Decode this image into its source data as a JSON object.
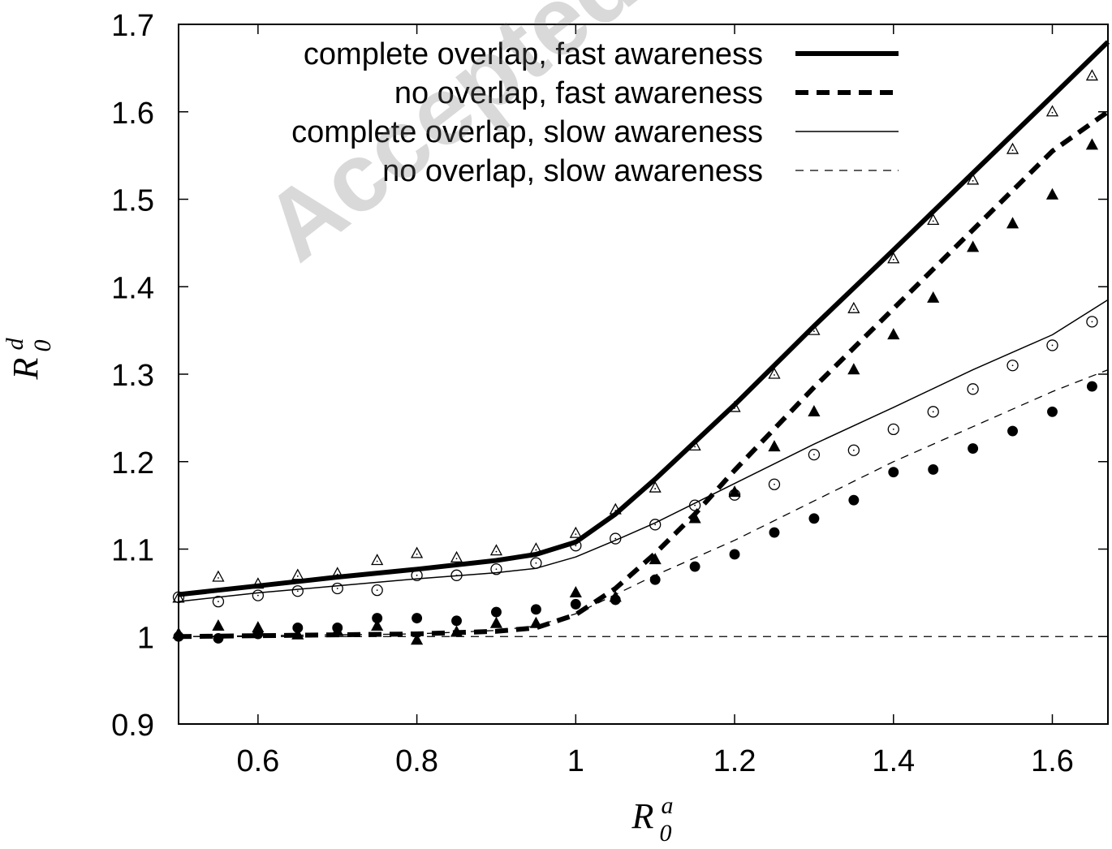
{
  "watermark": "Accepted man",
  "chart_data": {
    "type": "line",
    "xlabel": {
      "main": "R",
      "sup": "a",
      "sub": "0"
    },
    "ylabel": {
      "main": "R",
      "sup": "d",
      "sub": "0"
    },
    "xlim": [
      0.5,
      1.67
    ],
    "ylim": [
      0.9,
      1.7
    ],
    "xticks": [
      0.6,
      0.8,
      1.0,
      1.2,
      1.4,
      1.6
    ],
    "xtick_labels": [
      "0.6",
      "0.8",
      "1",
      "1.2",
      "1.4",
      "1.6"
    ],
    "yticks": [
      0.9,
      1.0,
      1.1,
      1.2,
      1.3,
      1.4,
      1.5,
      1.6,
      1.7
    ],
    "ytick_labels": [
      "0.9",
      "1",
      "1.1",
      "1.2",
      "1.3",
      "1.4",
      "1.5",
      "1.6",
      "1.7"
    ],
    "legend_position": "top-right",
    "reference_line": {
      "y": 1.0,
      "style": "dashed-thin"
    },
    "series": [
      {
        "name": "complete overlap, fast awareness",
        "style": "solid-thick",
        "x": [
          0.5,
          0.6,
          0.7,
          0.8,
          0.9,
          0.95,
          1.0,
          1.05,
          1.1,
          1.2,
          1.3,
          1.4,
          1.5,
          1.6,
          1.67
        ],
        "y": [
          1.048,
          1.058,
          1.068,
          1.077,
          1.087,
          1.094,
          1.108,
          1.14,
          1.18,
          1.265,
          1.355,
          1.442,
          1.53,
          1.618,
          1.68
        ]
      },
      {
        "name": "no overlap, fast awareness",
        "style": "dashed-thick",
        "x": [
          0.5,
          0.6,
          0.7,
          0.8,
          0.9,
          0.95,
          1.0,
          1.05,
          1.1,
          1.15,
          1.2,
          1.3,
          1.4,
          1.5,
          1.6,
          1.67
        ],
        "y": [
          1.0,
          1.001,
          1.002,
          1.003,
          1.006,
          1.01,
          1.025,
          1.055,
          1.095,
          1.14,
          1.19,
          1.285,
          1.375,
          1.465,
          1.555,
          1.6
        ]
      },
      {
        "name": "complete overlap, slow awareness",
        "style": "solid-thin",
        "x": [
          0.5,
          0.6,
          0.7,
          0.8,
          0.9,
          0.95,
          1.0,
          1.05,
          1.1,
          1.2,
          1.3,
          1.4,
          1.5,
          1.6,
          1.67
        ],
        "y": [
          1.04,
          1.05,
          1.058,
          1.066,
          1.073,
          1.078,
          1.091,
          1.11,
          1.13,
          1.175,
          1.22,
          1.262,
          1.305,
          1.345,
          1.385
        ]
      },
      {
        "name": "no overlap, slow awareness",
        "style": "dashed-thin",
        "x": [
          0.5,
          0.6,
          0.7,
          0.8,
          0.9,
          0.95,
          1.0,
          1.05,
          1.1,
          1.2,
          1.3,
          1.4,
          1.5,
          1.6,
          1.67
        ],
        "y": [
          1.0,
          1.001,
          1.002,
          1.003,
          1.007,
          1.012,
          1.026,
          1.048,
          1.07,
          1.11,
          1.155,
          1.2,
          1.24,
          1.28,
          1.305
        ]
      }
    ],
    "scatter": [
      {
        "marker": "triangle-open",
        "x": [
          0.5,
          0.55,
          0.6,
          0.65,
          0.7,
          0.75,
          0.8,
          0.85,
          0.9,
          0.95,
          1.0,
          1.05,
          1.1,
          1.15,
          1.2,
          1.25,
          1.3,
          1.35,
          1.4,
          1.45,
          1.5,
          1.55,
          1.6,
          1.65
        ],
        "y": [
          1.044,
          1.068,
          1.06,
          1.07,
          1.072,
          1.087,
          1.095,
          1.09,
          1.098,
          1.1,
          1.118,
          1.145,
          1.17,
          1.218,
          1.262,
          1.3,
          1.35,
          1.375,
          1.432,
          1.476,
          1.522,
          1.557,
          1.6,
          1.641
        ]
      },
      {
        "marker": "triangle-filled",
        "x": [
          0.5,
          0.55,
          0.6,
          0.65,
          0.7,
          0.75,
          0.8,
          0.85,
          0.9,
          0.95,
          1.0,
          1.05,
          1.1,
          1.15,
          1.2,
          1.25,
          1.3,
          1.35,
          1.4,
          1.45,
          1.5,
          1.55,
          1.6,
          1.65
        ],
        "y": [
          1.003,
          1.012,
          1.01,
          1.002,
          1.006,
          1.012,
          0.996,
          1.005,
          1.015,
          1.015,
          1.05,
          1.045,
          1.088,
          1.135,
          1.165,
          1.217,
          1.257,
          1.305,
          1.345,
          1.387,
          1.445,
          1.472,
          1.505,
          1.562
        ]
      },
      {
        "marker": "circle-open",
        "x": [
          0.5,
          0.55,
          0.6,
          0.65,
          0.7,
          0.75,
          0.8,
          0.85,
          0.9,
          0.95,
          1.0,
          1.05,
          1.1,
          1.15,
          1.2,
          1.25,
          1.3,
          1.35,
          1.4,
          1.45,
          1.5,
          1.55,
          1.6,
          1.65
        ],
        "y": [
          1.045,
          1.04,
          1.047,
          1.052,
          1.055,
          1.053,
          1.07,
          1.07,
          1.077,
          1.084,
          1.104,
          1.112,
          1.128,
          1.15,
          1.162,
          1.174,
          1.208,
          1.213,
          1.237,
          1.257,
          1.283,
          1.31,
          1.333,
          1.36
        ]
      },
      {
        "marker": "circle-filled",
        "x": [
          0.5,
          0.55,
          0.6,
          0.65,
          0.7,
          0.75,
          0.8,
          0.85,
          0.9,
          0.95,
          1.0,
          1.05,
          1.1,
          1.15,
          1.2,
          1.25,
          1.3,
          1.35,
          1.4,
          1.45,
          1.5,
          1.55,
          1.6,
          1.65
        ],
        "y": [
          1.0,
          0.998,
          1.003,
          1.01,
          1.01,
          1.021,
          1.021,
          1.018,
          1.028,
          1.031,
          1.037,
          1.042,
          1.065,
          1.08,
          1.094,
          1.119,
          1.135,
          1.156,
          1.188,
          1.191,
          1.215,
          1.235,
          1.257,
          1.286
        ]
      }
    ]
  }
}
